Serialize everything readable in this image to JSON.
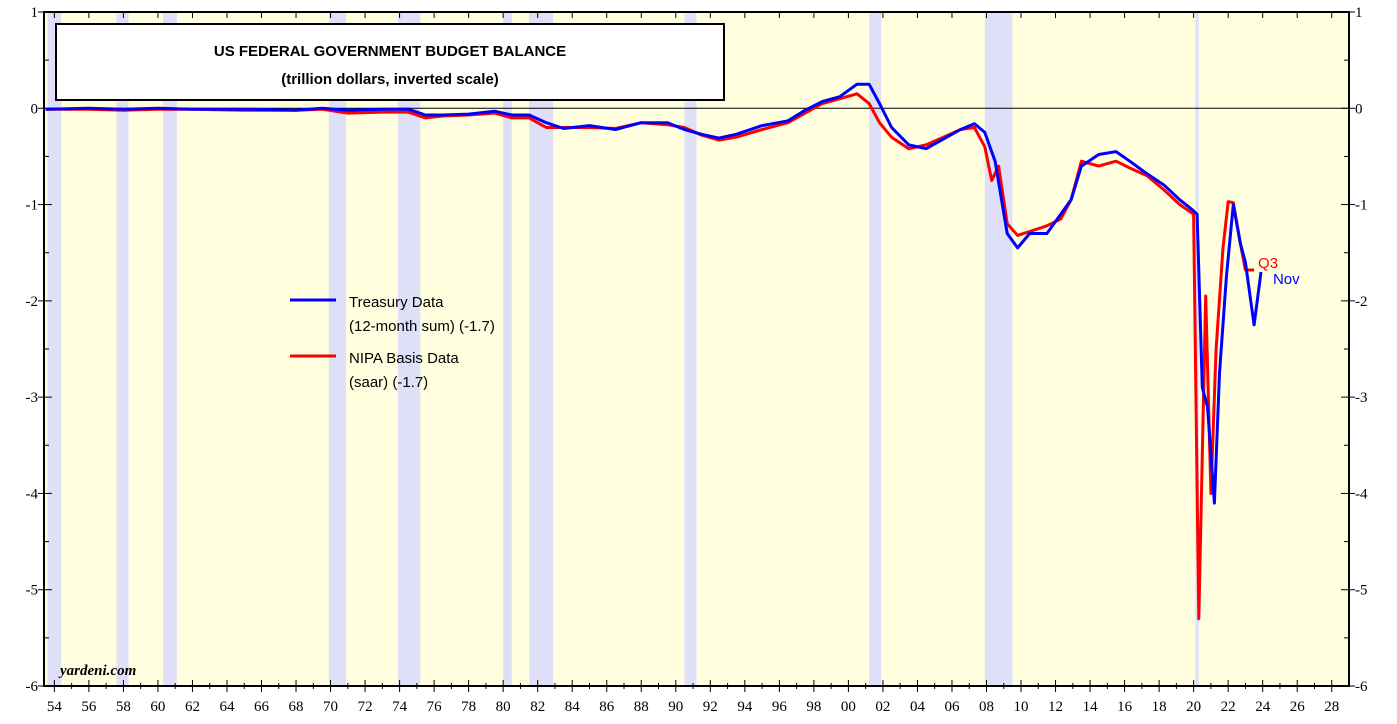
{
  "chart_data": {
    "type": "line",
    "title": "US FEDERAL GOVERNMENT BUDGET BALANCE",
    "subtitle": "(trillion dollars, inverted scale)",
    "watermark": "yardeni.com",
    "xlim": [
      1953.4,
      2029
    ],
    "ylim": [
      -6,
      1
    ],
    "yticks": [
      -6,
      -5,
      -4,
      -3,
      -2,
      -1,
      0,
      1
    ],
    "xticks": [
      {
        "value": 1954,
        "label": "54"
      },
      {
        "value": 1956,
        "label": "56"
      },
      {
        "value": 1958,
        "label": "58"
      },
      {
        "value": 1960,
        "label": "60"
      },
      {
        "value": 1962,
        "label": "62"
      },
      {
        "value": 1964,
        "label": "64"
      },
      {
        "value": 1966,
        "label": "66"
      },
      {
        "value": 1968,
        "label": "68"
      },
      {
        "value": 1970,
        "label": "70"
      },
      {
        "value": 1972,
        "label": "72"
      },
      {
        "value": 1974,
        "label": "74"
      },
      {
        "value": 1976,
        "label": "76"
      },
      {
        "value": 1978,
        "label": "78"
      },
      {
        "value": 1980,
        "label": "80"
      },
      {
        "value": 1982,
        "label": "82"
      },
      {
        "value": 1984,
        "label": "84"
      },
      {
        "value": 1986,
        "label": "86"
      },
      {
        "value": 1988,
        "label": "88"
      },
      {
        "value": 1990,
        "label": "90"
      },
      {
        "value": 1992,
        "label": "92"
      },
      {
        "value": 1994,
        "label": "94"
      },
      {
        "value": 1996,
        "label": "96"
      },
      {
        "value": 1998,
        "label": "98"
      },
      {
        "value": 2000,
        "label": "00"
      },
      {
        "value": 2002,
        "label": "02"
      },
      {
        "value": 2004,
        "label": "04"
      },
      {
        "value": 2006,
        "label": "06"
      },
      {
        "value": 2008,
        "label": "08"
      },
      {
        "value": 2010,
        "label": "10"
      },
      {
        "value": 2012,
        "label": "12"
      },
      {
        "value": 2014,
        "label": "14"
      },
      {
        "value": 2016,
        "label": "16"
      },
      {
        "value": 2018,
        "label": "18"
      },
      {
        "value": 2020,
        "label": "20"
      },
      {
        "value": 2022,
        "label": "22"
      },
      {
        "value": 2024,
        "label": "24"
      },
      {
        "value": 2026,
        "label": "26"
      },
      {
        "value": 2028,
        "label": "28"
      }
    ],
    "shaded_periods": [
      [
        1953.6,
        1954.4
      ],
      [
        1957.6,
        1958.3
      ],
      [
        1960.3,
        1961.1
      ],
      [
        1969.9,
        1970.9
      ],
      [
        1973.9,
        1975.2
      ],
      [
        1980.0,
        1980.5
      ],
      [
        1981.5,
        1982.9
      ],
      [
        1990.5,
        1991.2
      ],
      [
        2001.2,
        2001.9
      ],
      [
        2007.9,
        2009.5
      ],
      [
        2020.1,
        2020.3
      ]
    ],
    "shade_color": "#dfe0f7",
    "background": "#ffffe0",
    "series": [
      {
        "name": "Treasury Data",
        "note": "(12-month sum) (-1.7)",
        "color": "#0000ff",
        "end_label": "Nov",
        "x": [
          1953.5,
          1956,
          1958,
          1960,
          1962,
          1965,
          1968,
          1969.5,
          1971,
          1973,
          1974.5,
          1975.5,
          1976.5,
          1978,
          1979.5,
          1980.5,
          1981.5,
          1982.5,
          1983.5,
          1985,
          1986.5,
          1988,
          1989.5,
          1990.5,
          1991.5,
          1992.5,
          1993.5,
          1995,
          1996.5,
          1997.5,
          1998.5,
          1999.5,
          2000.5,
          2001.2,
          2001.8,
          2002.5,
          2003.5,
          2004.5,
          2005.5,
          2006.5,
          2007.3,
          2007.9,
          2008.5,
          2009.2,
          2009.8,
          2010.5,
          2011.5,
          2012.3,
          2012.9,
          2013.5,
          2014.5,
          2015.5,
          2016.3,
          2017.3,
          2018.3,
          2019.2,
          2019.9,
          2020.2,
          2020.5,
          2020.8,
          2021.2,
          2021.5,
          2021.9,
          2022.3,
          2022.7,
          2023.0,
          2023.5,
          2023.9
        ],
        "values": [
          -0.01,
          0.0,
          -0.01,
          0.0,
          -0.01,
          -0.01,
          -0.02,
          0.0,
          -0.02,
          -0.01,
          -0.01,
          -0.07,
          -0.07,
          -0.06,
          -0.03,
          -0.07,
          -0.07,
          -0.15,
          -0.21,
          -0.18,
          -0.22,
          -0.15,
          -0.15,
          -0.22,
          -0.27,
          -0.31,
          -0.27,
          -0.18,
          -0.13,
          -0.02,
          0.07,
          0.12,
          0.25,
          0.25,
          0.05,
          -0.2,
          -0.38,
          -0.42,
          -0.32,
          -0.22,
          -0.16,
          -0.25,
          -0.55,
          -1.3,
          -1.45,
          -1.3,
          -1.3,
          -1.1,
          -0.95,
          -0.6,
          -0.48,
          -0.45,
          -0.55,
          -0.68,
          -0.8,
          -0.95,
          -1.05,
          -1.1,
          -2.9,
          -3.1,
          -4.1,
          -2.75,
          -1.75,
          -1.0,
          -1.4,
          -1.6,
          -2.25,
          -1.7
        ]
      },
      {
        "name": "NIPA Basis Data",
        "note": "(saar) (-1.7)",
        "color": "#ff0000",
        "end_label": "Q3",
        "x": [
          1953.5,
          1956,
          1958,
          1960,
          1962,
          1965,
          1968,
          1969.5,
          1971,
          1973,
          1974.5,
          1975.5,
          1976.5,
          1978,
          1979.5,
          1980.5,
          1981.5,
          1982.5,
          1983.5,
          1985,
          1986.5,
          1988,
          1989.5,
          1990.5,
          1991.5,
          1992.5,
          1993.5,
          1995,
          1996.5,
          1997.5,
          1998.5,
          1999.5,
          2000.5,
          2001.2,
          2001.8,
          2002.5,
          2003.5,
          2004.5,
          2005.5,
          2006.5,
          2007.3,
          2007.9,
          2008.3,
          2008.7,
          2009.2,
          2009.8,
          2010.5,
          2011.5,
          2012.3,
          2012.9,
          2013.5,
          2014.5,
          2015.5,
          2016.3,
          2017.3,
          2018.3,
          2019.2,
          2020.0,
          2020.3,
          2020.7,
          2021.0,
          2021.3,
          2021.7,
          2022.0,
          2022.3,
          2022.7,
          2023.0,
          2023.5
        ],
        "values": [
          -0.01,
          -0.01,
          -0.02,
          -0.01,
          -0.01,
          -0.02,
          -0.02,
          -0.01,
          -0.05,
          -0.04,
          -0.04,
          -0.1,
          -0.08,
          -0.07,
          -0.05,
          -0.1,
          -0.1,
          -0.2,
          -0.2,
          -0.2,
          -0.21,
          -0.15,
          -0.17,
          -0.2,
          -0.28,
          -0.33,
          -0.3,
          -0.22,
          -0.15,
          -0.05,
          0.05,
          0.1,
          0.15,
          0.05,
          -0.15,
          -0.3,
          -0.42,
          -0.38,
          -0.3,
          -0.22,
          -0.2,
          -0.4,
          -0.75,
          -0.6,
          -1.2,
          -1.32,
          -1.28,
          -1.22,
          -1.15,
          -0.95,
          -0.55,
          -0.6,
          -0.55,
          -0.62,
          -0.7,
          -0.85,
          -1.0,
          -1.1,
          -5.3,
          -1.95,
          -4.0,
          -2.5,
          -1.45,
          -0.97,
          -0.98,
          -1.4,
          -1.68,
          -1.68
        ]
      }
    ]
  }
}
